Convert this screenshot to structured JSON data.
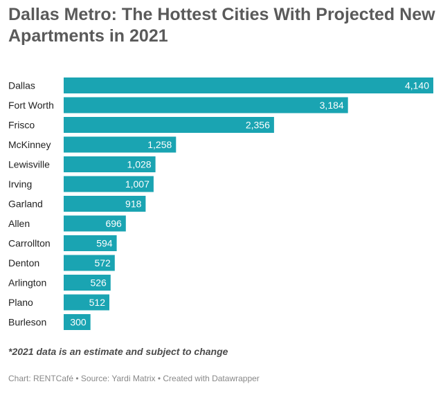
{
  "chart_data": {
    "type": "bar",
    "orientation": "horizontal",
    "title": "Dallas Metro: The Hottest Cities With Projected New Apartments in 2021",
    "categories": [
      "Dallas",
      "Fort Worth",
      "Frisco",
      "McKinney",
      "Lewisville",
      "Irving",
      "Garland",
      "Allen",
      "Carrollton",
      "Denton",
      "Arlington",
      "Plano",
      "Burleson"
    ],
    "values": [
      4140,
      3184,
      2356,
      1258,
      1028,
      1007,
      918,
      696,
      594,
      572,
      526,
      512,
      300
    ],
    "value_labels": [
      "4,140",
      "3,184",
      "2,356",
      "1,258",
      "1,028",
      "1,007",
      "918",
      "696",
      "594",
      "572",
      "526",
      "512",
      "300"
    ],
    "xlim": [
      0,
      4140
    ],
    "xlabel": "",
    "ylabel": "",
    "bar_color": "#1aa4b2",
    "grid": false,
    "legend": "none"
  },
  "note": "*2021 data is an estimate and subject to change",
  "footer": {
    "chart": "Chart: RENTCafé",
    "separator": " • ",
    "source": "Source: Yardi Matrix",
    "created": "Created with Datawrapper"
  }
}
